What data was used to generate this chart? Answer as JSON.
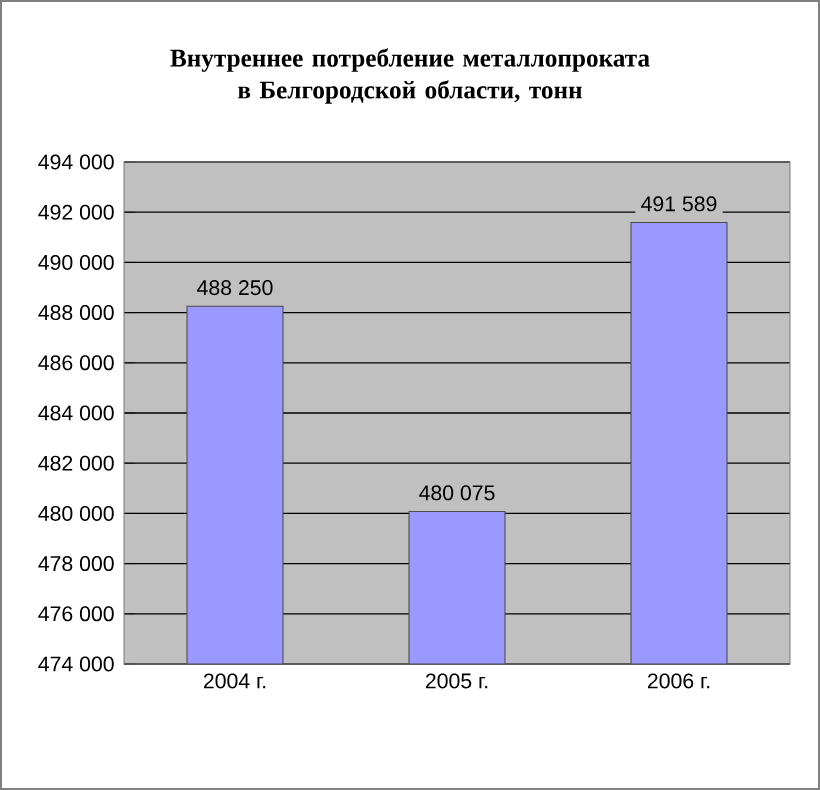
{
  "chart_data": {
    "type": "bar",
    "title": "Внутреннее потребление металлопроката в Белгородской области, тонн",
    "categories": [
      "2004 г.",
      "2005 г.",
      "2006 г."
    ],
    "values": [
      488250,
      480075,
      491589
    ],
    "value_labels": [
      "488 250",
      "480 075",
      "491 589"
    ],
    "color": "#9999ff",
    "ylim": [
      474000,
      494000
    ],
    "yticks": [
      {
        "value": 474000,
        "label": "474 000"
      },
      {
        "value": 476000,
        "label": "476 000"
      },
      {
        "value": 478000,
        "label": "478 000"
      },
      {
        "value": 480000,
        "label": "480 000"
      },
      {
        "value": 482000,
        "label": "482 000"
      },
      {
        "value": 484000,
        "label": "484 000"
      },
      {
        "value": 486000,
        "label": "486 000"
      },
      {
        "value": 488000,
        "label": "488 000"
      },
      {
        "value": 490000,
        "label": "490 000"
      },
      {
        "value": 492000,
        "label": "492 000"
      },
      {
        "value": 494000,
        "label": "494 000"
      }
    ],
    "grid": "y"
  }
}
